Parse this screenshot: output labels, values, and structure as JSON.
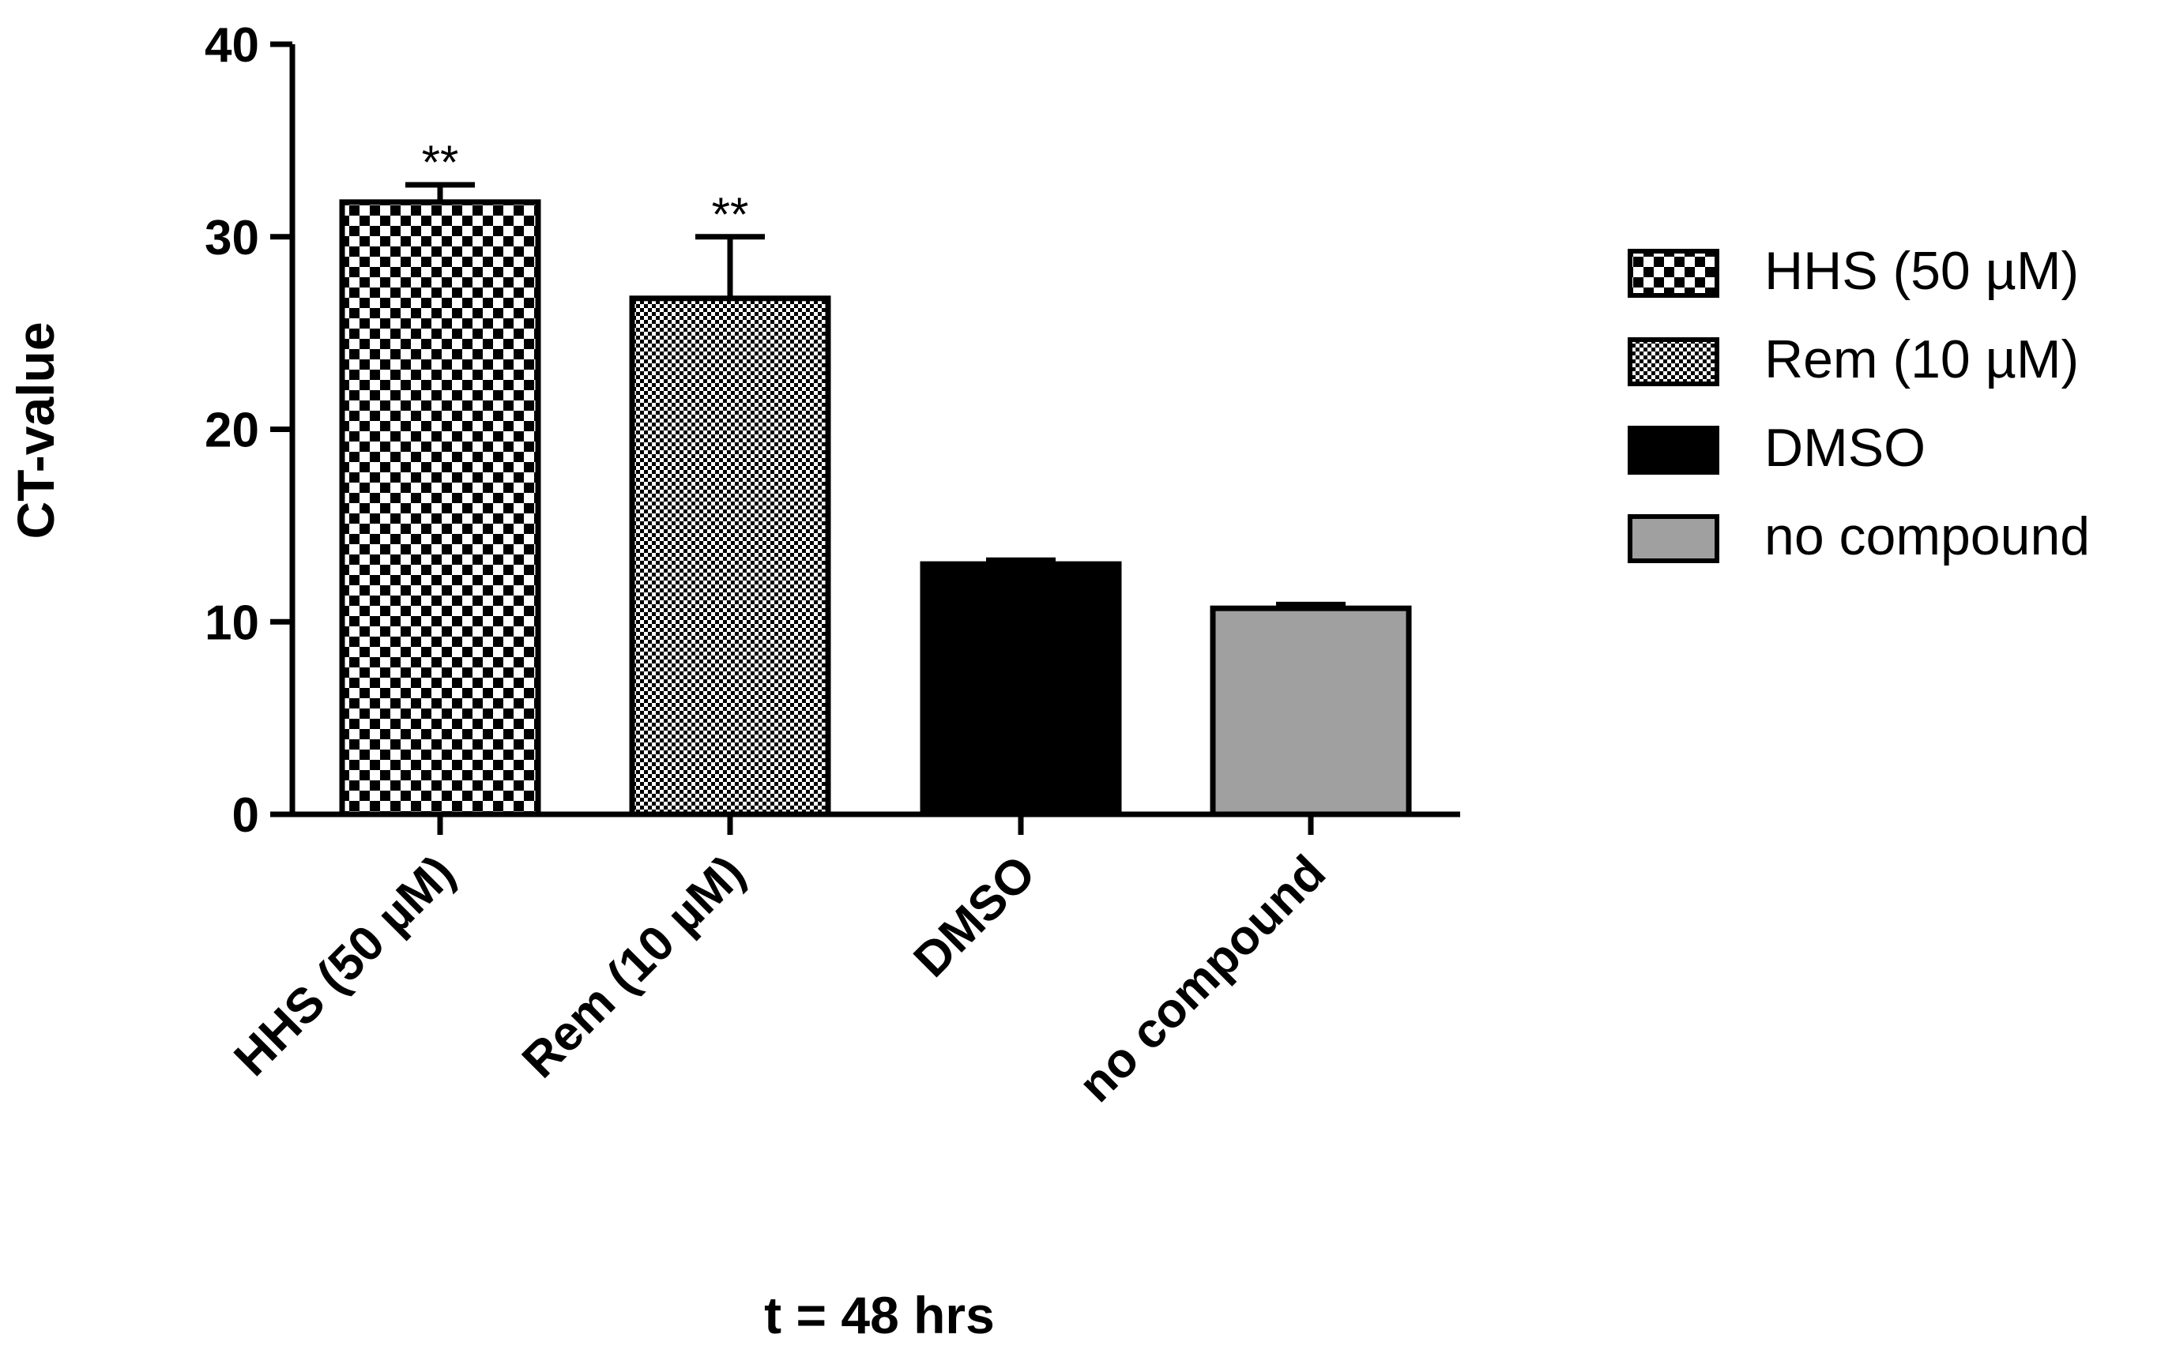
{
  "chart_data": {
    "type": "bar",
    "title": "",
    "xlabel": "t = 48 hrs",
    "ylabel": "CT-value",
    "ylim": [
      0,
      40
    ],
    "yticks": [
      0,
      10,
      20,
      30,
      40
    ],
    "categories": [
      "HHS (50 µM)",
      "Rem (10 µM)",
      "DMSO",
      "no compound"
    ],
    "values": [
      31.8,
      26.8,
      13.0,
      10.7
    ],
    "errors": [
      0.9,
      3.2,
      0.2,
      0.2
    ],
    "annotations": [
      "**",
      "**",
      "",
      ""
    ],
    "fills": [
      "checker-large",
      "checker-fine",
      "#000000",
      "#a0a0a0"
    ],
    "legend_position": "right",
    "legend": [
      "HHS (50 µM)",
      "Rem (10 µM)",
      "DMSO",
      "no compound"
    ],
    "grid": false
  }
}
